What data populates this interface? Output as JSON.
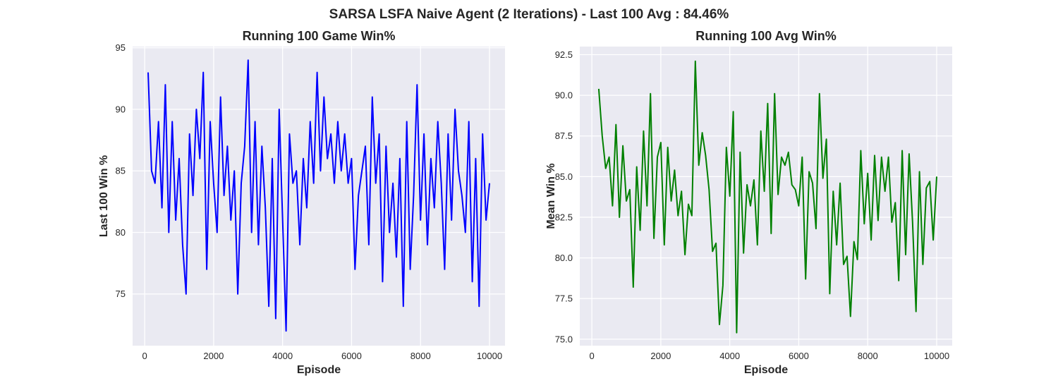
{
  "figure": {
    "suptitle": "SARSA LSFA Naive Agent (2 Iterations) -  Last 100 Avg : 84.46%"
  },
  "chart_data": [
    {
      "type": "line",
      "title": "Running 100 Game Win%",
      "xlabel": "Episode",
      "ylabel": "Last 100 Win %",
      "xlim": [
        -350,
        10450
      ],
      "ylim": [
        70.8,
        95.1
      ],
      "xticks": [
        0,
        2000,
        4000,
        6000,
        8000,
        10000
      ],
      "yticks": [
        75,
        80,
        85,
        90,
        95
      ],
      "grid": true,
      "series": [
        {
          "color": "#0000ff",
          "x": [
            100,
            200,
            300,
            400,
            500,
            600,
            700,
            800,
            900,
            1000,
            1100,
            1200,
            1300,
            1400,
            1500,
            1600,
            1700,
            1800,
            1900,
            2000,
            2100,
            2200,
            2300,
            2400,
            2500,
            2600,
            2700,
            2800,
            2900,
            3000,
            3100,
            3200,
            3300,
            3400,
            3500,
            3600,
            3700,
            3800,
            3900,
            4000,
            4100,
            4200,
            4300,
            4400,
            4500,
            4600,
            4700,
            4800,
            4900,
            5000,
            5100,
            5200,
            5300,
            5400,
            5500,
            5600,
            5700,
            5800,
            5900,
            6000,
            6100,
            6200,
            6300,
            6400,
            6500,
            6600,
            6700,
            6800,
            6900,
            7000,
            7100,
            7200,
            7300,
            7400,
            7500,
            7600,
            7700,
            7800,
            7900,
            8000,
            8100,
            8200,
            8300,
            8400,
            8500,
            8600,
            8700,
            8800,
            8900,
            9000,
            9100,
            9200,
            9300,
            9400,
            9500,
            9600,
            9700,
            9800,
            9900,
            10000
          ],
          "y": [
            93,
            85,
            84,
            89,
            82,
            92,
            80,
            89,
            81,
            86,
            79,
            75,
            88,
            83,
            90,
            86,
            93,
            77,
            89,
            84,
            80,
            91,
            83,
            87,
            81,
            85,
            75,
            84,
            87,
            94,
            80,
            89,
            79,
            87,
            82,
            74,
            86,
            73,
            90,
            81,
            72,
            88,
            84,
            85,
            79,
            86,
            82,
            89,
            84,
            93,
            85,
            91,
            86,
            88,
            84,
            89,
            85,
            88,
            84,
            86,
            77,
            83,
            85,
            87,
            79,
            91,
            84,
            88,
            76,
            87,
            80,
            84,
            78,
            86,
            74,
            89,
            77,
            83,
            92,
            81,
            88,
            79,
            86,
            82,
            89,
            84,
            77,
            88,
            81,
            90,
            85,
            83,
            80,
            89,
            76,
            86,
            74,
            88,
            81,
            84
          ]
        }
      ]
    },
    {
      "type": "line",
      "title": "Running 100 Avg Win%",
      "xlabel": "Episode",
      "ylabel": "Mean Win %",
      "xlim": [
        -350,
        10450
      ],
      "ylim": [
        74.6,
        93.0
      ],
      "xticks": [
        0,
        2000,
        4000,
        6000,
        8000,
        10000
      ],
      "yticks": [
        75.0,
        77.5,
        80.0,
        82.5,
        85.0,
        87.5,
        90.0,
        92.5
      ],
      "grid": true,
      "series": [
        {
          "color": "#008000",
          "x": [
            200,
            300,
            400,
            500,
            600,
            700,
            800,
            900,
            1000,
            1100,
            1200,
            1300,
            1400,
            1500,
            1600,
            1700,
            1800,
            1900,
            2000,
            2100,
            2200,
            2300,
            2400,
            2500,
            2600,
            2700,
            2800,
            2900,
            3000,
            3100,
            3200,
            3300,
            3400,
            3500,
            3600,
            3700,
            3800,
            3900,
            4000,
            4100,
            4200,
            4300,
            4400,
            4500,
            4600,
            4700,
            4800,
            4900,
            5000,
            5100,
            5200,
            5300,
            5400,
            5500,
            5600,
            5700,
            5800,
            5900,
            6000,
            6100,
            6200,
            6300,
            6400,
            6500,
            6600,
            6700,
            6800,
            6900,
            7000,
            7100,
            7200,
            7300,
            7400,
            7500,
            7600,
            7700,
            7800,
            7900,
            8000,
            8100,
            8200,
            8300,
            8400,
            8500,
            8600,
            8700,
            8800,
            8900,
            9000,
            9100,
            9200,
            9300,
            9400,
            9500,
            9600,
            9700,
            9800,
            9900,
            10000
          ],
          "y": [
            90.4,
            87.5,
            85.5,
            86.2,
            83.2,
            88.2,
            82.5,
            86.9,
            83.5,
            84.2,
            78.2,
            85.6,
            81.7,
            87.8,
            83.2,
            90.1,
            81.2,
            86.2,
            87.1,
            80.8,
            86.8,
            83.5,
            85.4,
            82.6,
            84.1,
            80.2,
            83.3,
            82.6,
            92.1,
            85.7,
            87.7,
            86.3,
            84.2,
            80.4,
            80.9,
            75.9,
            78.3,
            86.8,
            83.8,
            89.0,
            75.4,
            86.5,
            80.3,
            84.5,
            83.2,
            84.8,
            80.8,
            87.8,
            84.1,
            89.5,
            81.5,
            90.1,
            83.9,
            86.2,
            85.7,
            86.5,
            84.5,
            84.2,
            83.2,
            86.2,
            78.7,
            85.3,
            84.6,
            81.8,
            90.1,
            84.9,
            87.3,
            77.8,
            84.1,
            80.8,
            84.6,
            79.6,
            80.1,
            76.4,
            81.0,
            79.9,
            86.6,
            82.1,
            85.2,
            81.1,
            86.3,
            82.3,
            86.2,
            84.1,
            86.2,
            82.2,
            83.4,
            78.6,
            86.6,
            80.2,
            86.4,
            82.2,
            76.7,
            85.3,
            79.6,
            84.3,
            84.7,
            81.1,
            85.0
          ]
        }
      ]
    }
  ]
}
